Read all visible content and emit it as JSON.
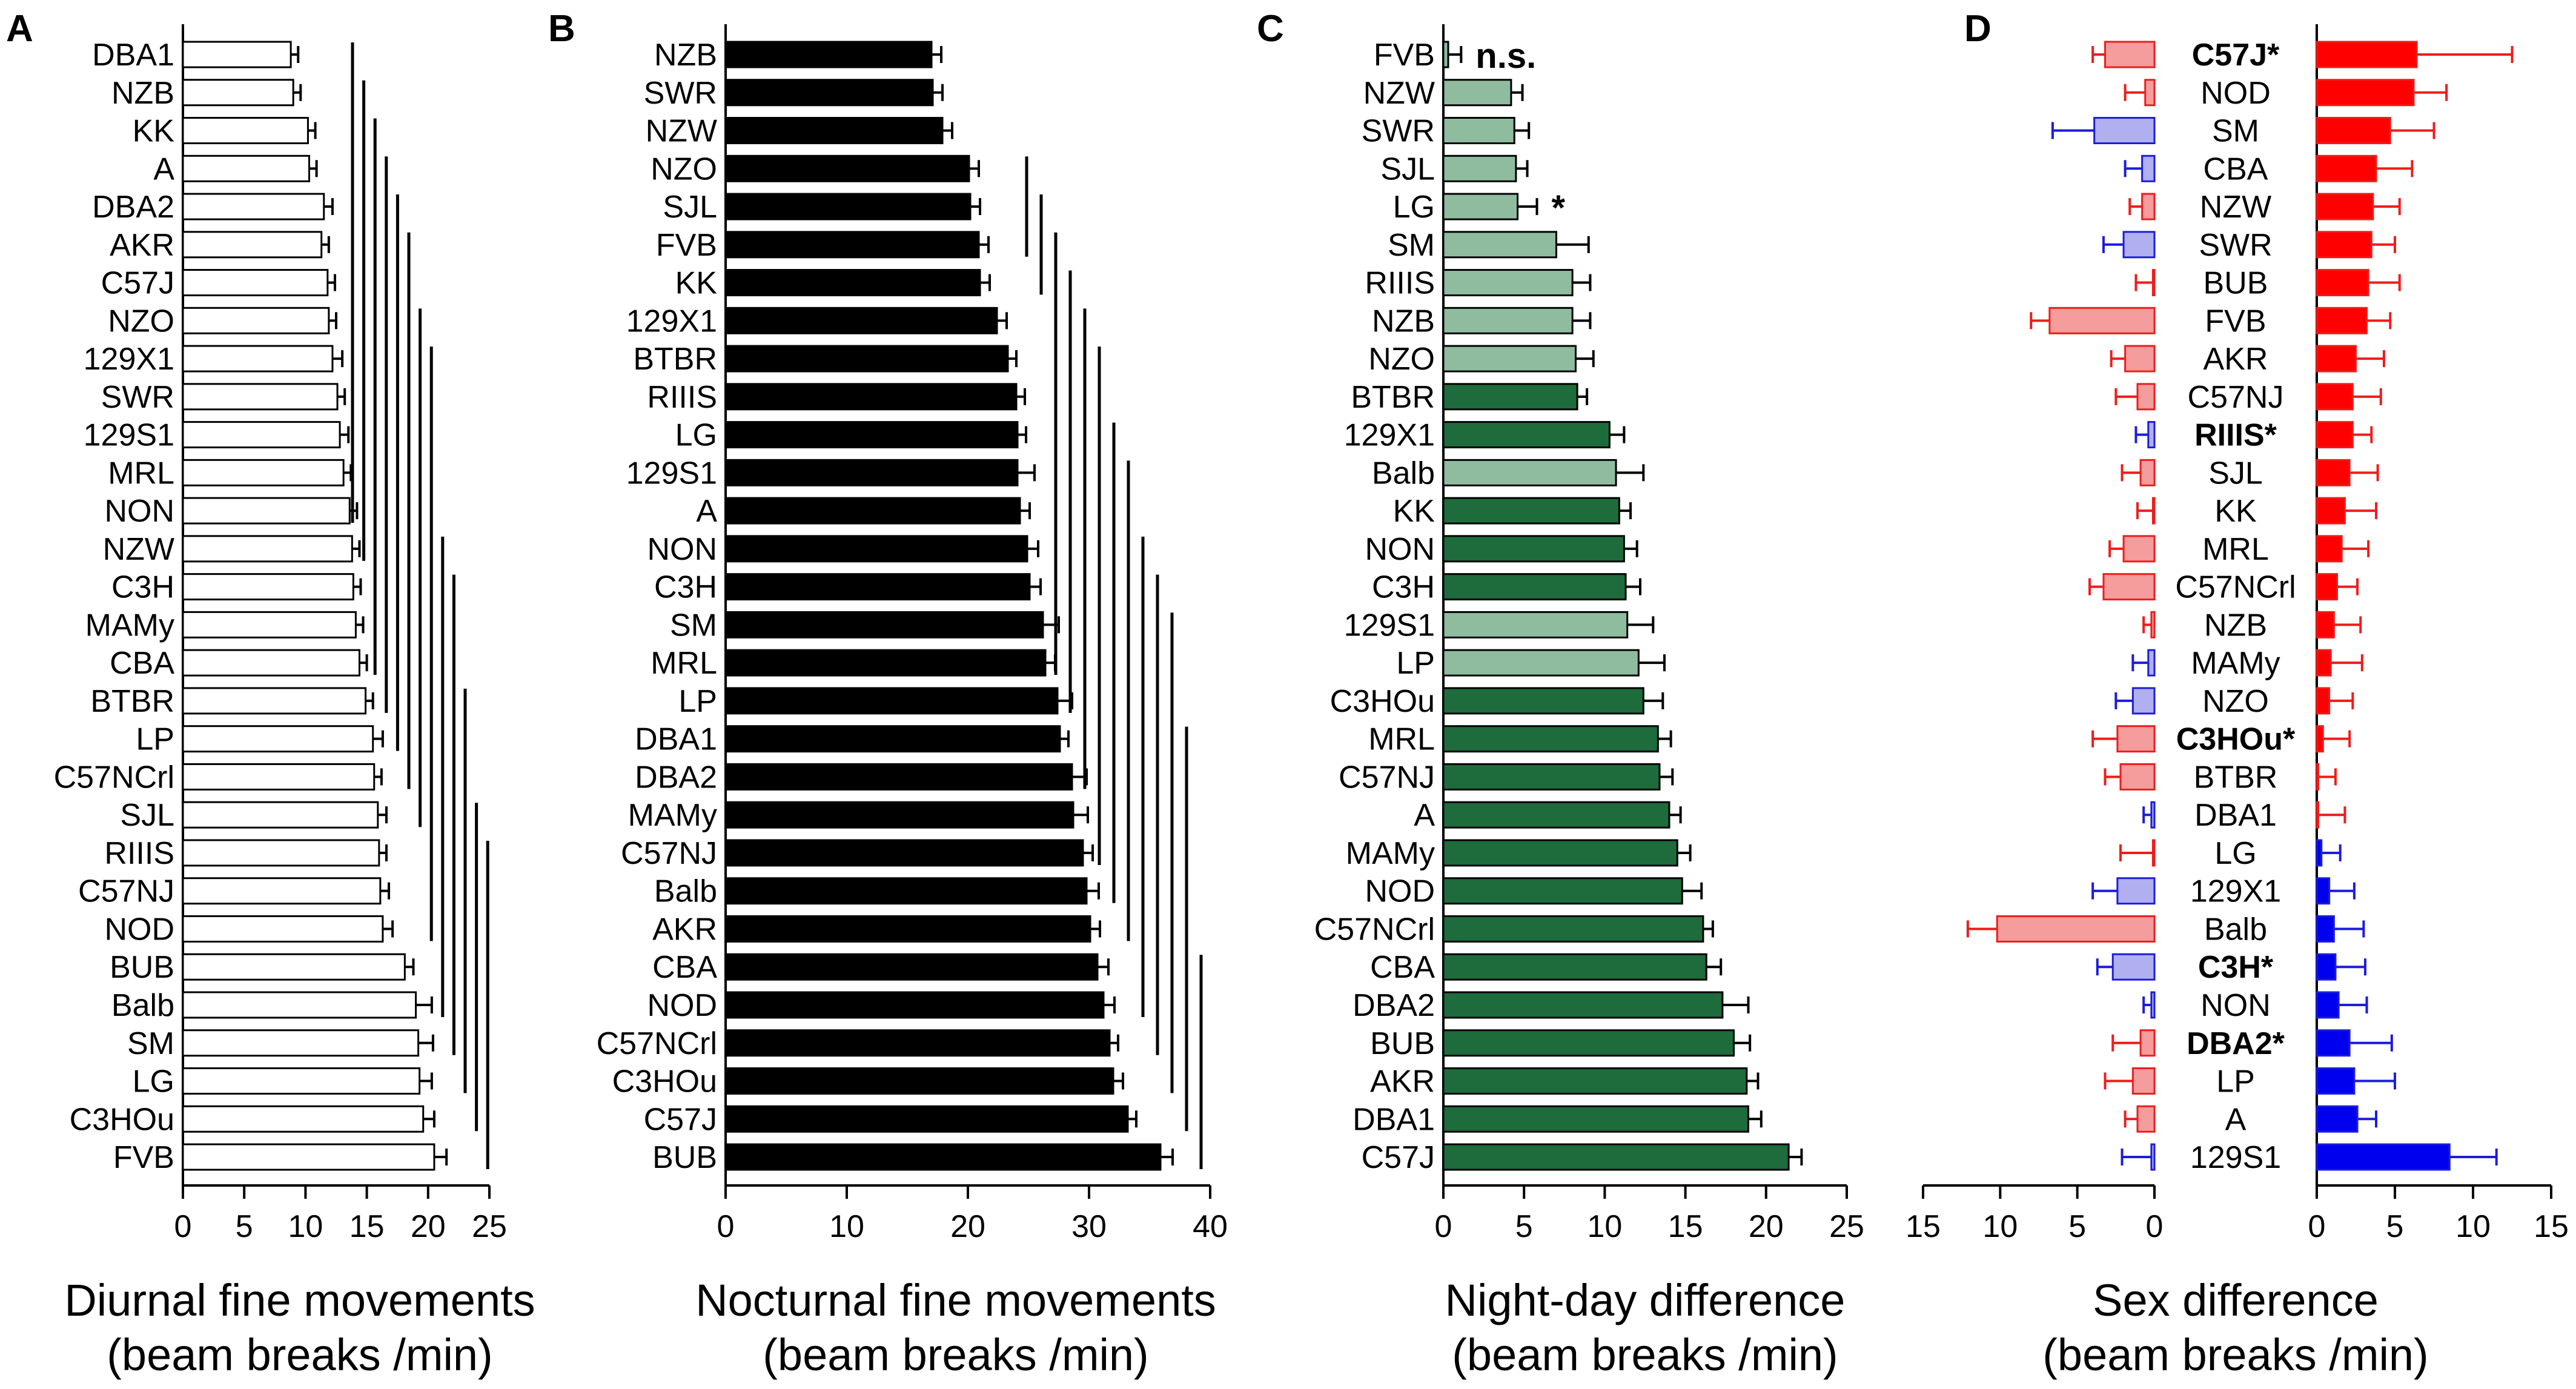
{
  "colors": {
    "panel_a_bar": "#ffffff",
    "panel_b_bar": "#000000",
    "panel_c_light": "#8fbc9f",
    "panel_c_dark": "#1e6b3c",
    "female_bar": "#f59c9c",
    "female_line": "#ee1c1c",
    "male_bar": "#ff0000",
    "low_bar": "#b0b0f0",
    "low_line": "#1c1cdc",
    "male_low_bar": "#0000ee"
  },
  "chart_data": [
    {
      "id": "A",
      "panel_label": "A",
      "type": "bar",
      "orientation": "horizontal",
      "xlabel_line1": "Diurnal fine movements",
      "xlabel_line2": "(beam breaks /min)",
      "xlim": [
        0,
        25
      ],
      "ticks": [
        "0",
        "5",
        "10",
        "15",
        "20",
        "25"
      ],
      "strains": [
        "DBA1",
        "NZB",
        "KK",
        "A",
        "DBA2",
        "AKR",
        "C57J",
        "NZO",
        "129X1",
        "SWR",
        "129S1",
        "MRL",
        "NON",
        "NZW",
        "C3H",
        "MAMy",
        "CBA",
        "BTBR",
        "LP",
        "C57NCrl",
        "SJL",
        "RIIIS",
        "C57NJ",
        "NOD",
        "BUB",
        "Balb",
        "SM",
        "LG",
        "C3HOu",
        "FVB"
      ],
      "values": [
        8.8,
        9.0,
        10.2,
        10.3,
        11.5,
        11.3,
        11.8,
        11.9,
        12.2,
        12.6,
        12.8,
        13.1,
        13.6,
        13.8,
        13.9,
        14.1,
        14.4,
        14.9,
        15.5,
        15.6,
        15.9,
        16.0,
        16.1,
        16.3,
        18.1,
        19.0,
        19.2,
        19.3,
        19.6,
        20.5
      ],
      "errors": [
        0.6,
        0.6,
        0.6,
        0.6,
        0.7,
        0.6,
        0.6,
        0.6,
        0.8,
        0.6,
        0.7,
        0.6,
        0.6,
        0.6,
        0.6,
        0.6,
        0.6,
        0.6,
        0.8,
        0.6,
        0.7,
        0.6,
        0.7,
        0.8,
        0.7,
        1.3,
        1.2,
        1.0,
        0.9,
        1.0
      ],
      "significance_lines": [
        {
          "from": "DBA1",
          "to": "NON"
        },
        {
          "from": "NZB",
          "to": "NZW"
        },
        {
          "from": "KK",
          "to": "CBA"
        },
        {
          "from": "A",
          "to": "BTBR"
        },
        {
          "from": "DBA2",
          "to": "LP"
        },
        {
          "from": "AKR",
          "to": "C57NCrl"
        },
        {
          "from": "NZO",
          "to": "SJL"
        },
        {
          "from": "129X1",
          "to": "NOD"
        },
        {
          "from": "NZW",
          "to": "Balb"
        },
        {
          "from": "C3H",
          "to": "SM"
        },
        {
          "from": "BTBR",
          "to": "LG"
        },
        {
          "from": "SJL",
          "to": "C3HOu"
        },
        {
          "from": "RIIIS",
          "to": "FVB"
        }
      ]
    },
    {
      "id": "B",
      "panel_label": "B",
      "type": "bar",
      "orientation": "horizontal",
      "xlabel_line1": "Nocturnal fine movements",
      "xlabel_line2": "(beam breaks /min)",
      "xlim": [
        0,
        40
      ],
      "ticks": [
        "0",
        "10",
        "20",
        "30",
        "40"
      ],
      "strains": [
        "NZB",
        "SWR",
        "NZW",
        "NZO",
        "SJL",
        "FVB",
        "KK",
        "129X1",
        "BTBR",
        "RIIIS",
        "LG",
        "129S1",
        "A",
        "NON",
        "C3H",
        "SM",
        "MRL",
        "LP",
        "DBA1",
        "DBA2",
        "MAMy",
        "C57NJ",
        "Balb",
        "AKR",
        "CBA",
        "NOD",
        "C57NCrl",
        "C3HOu",
        "C57J",
        "BUB"
      ],
      "values": [
        17.0,
        17.1,
        17.9,
        20.1,
        20.2,
        20.9,
        21.0,
        22.4,
        23.3,
        24.0,
        24.1,
        24.1,
        24.3,
        24.9,
        25.1,
        26.2,
        26.4,
        27.4,
        27.6,
        28.6,
        28.7,
        29.5,
        29.8,
        30.1,
        30.7,
        31.2,
        31.7,
        32.0,
        33.2,
        35.9
      ],
      "errors": [
        0.8,
        0.8,
        0.8,
        0.8,
        0.8,
        0.8,
        0.8,
        0.8,
        0.7,
        0.7,
        0.7,
        1.4,
        0.8,
        0.9,
        0.9,
        1.3,
        0.8,
        1.2,
        0.7,
        1.2,
        1.2,
        0.8,
        1.0,
        0.8,
        0.9,
        0.9,
        0.7,
        0.8,
        0.7,
        1.0
      ],
      "significance_lines": [
        {
          "from": "NZO",
          "to": "FVB"
        },
        {
          "from": "SJL",
          "to": "KK"
        },
        {
          "from": "FVB",
          "to": "MRL"
        },
        {
          "from": "KK",
          "to": "LP"
        },
        {
          "from": "129X1",
          "to": "DBA2"
        },
        {
          "from": "BTBR",
          "to": "C57NJ"
        },
        {
          "from": "LG",
          "to": "Balb"
        },
        {
          "from": "129S1",
          "to": "AKR"
        },
        {
          "from": "NON",
          "to": "NOD"
        },
        {
          "from": "C3H",
          "to": "C57NCrl"
        },
        {
          "from": "SM",
          "to": "C3HOu"
        },
        {
          "from": "DBA1",
          "to": "C57J"
        },
        {
          "from": "CBA",
          "to": "BUB"
        }
      ]
    },
    {
      "id": "C",
      "panel_label": "C",
      "type": "bar",
      "orientation": "horizontal",
      "xlabel_line1": "Night-day difference",
      "xlabel_line2": "(beam breaks /min)",
      "xlim": [
        0,
        25
      ],
      "ticks": [
        "0",
        "5",
        "10",
        "15",
        "20",
        "25"
      ],
      "strains": [
        "FVB",
        "NZW",
        "SWR",
        "SJL",
        "LG",
        "SM",
        "RIIIS",
        "NZB",
        "NZO",
        "BTBR",
        "129X1",
        "Balb",
        "KK",
        "NON",
        "C3H",
        "129S1",
        "LP",
        "C3HOu",
        "MRL",
        "C57NJ",
        "A",
        "MAMy",
        "NOD",
        "C57NCrl",
        "CBA",
        "DBA2",
        "BUB",
        "AKR",
        "DBA1",
        "C57J"
      ],
      "values": [
        0.3,
        4.2,
        4.4,
        4.5,
        4.6,
        7.0,
        8.0,
        8.0,
        8.2,
        8.3,
        10.3,
        10.7,
        10.9,
        11.2,
        11.3,
        11.4,
        12.1,
        12.4,
        13.3,
        13.4,
        14.0,
        14.5,
        14.8,
        16.1,
        16.3,
        17.3,
        18.0,
        18.8,
        18.9,
        21.4
      ],
      "errors": [
        0.8,
        0.7,
        0.9,
        0.7,
        1.2,
        2.0,
        1.1,
        1.1,
        1.1,
        0.6,
        0.9,
        1.7,
        0.7,
        0.8,
        0.9,
        1.6,
        1.6,
        1.2,
        0.8,
        0.8,
        0.7,
        0.8,
        1.2,
        0.6,
        0.9,
        1.6,
        1.0,
        0.7,
        0.8,
        0.8
      ],
      "shade": [
        "light",
        "light",
        "light",
        "light",
        "light",
        "light",
        "light",
        "light",
        "light",
        "dark",
        "dark",
        "light",
        "dark",
        "dark",
        "dark",
        "light",
        "light",
        "dark",
        "dark",
        "dark",
        "dark",
        "dark",
        "dark",
        "dark",
        "dark",
        "dark",
        "dark",
        "dark",
        "dark",
        "dark"
      ],
      "annotations": [
        {
          "strain": "FVB",
          "text": "n.s."
        },
        {
          "strain": "LG",
          "text": "*"
        }
      ]
    },
    {
      "id": "D",
      "panel_label": "D",
      "type": "bar",
      "orientation": "horizontal-back-to-back",
      "xlabel_line1": "Sex difference",
      "xlabel_line2": "(beam breaks /min)",
      "xlim_left": [
        15,
        0
      ],
      "xlim_right": [
        0,
        15
      ],
      "ticks_left": [
        "15",
        "10",
        "5",
        "0"
      ],
      "ticks_right": [
        "0",
        "5",
        "10",
        "15"
      ],
      "strains": [
        "C57J*",
        "NOD",
        "SM",
        "CBA",
        "NZW",
        "SWR",
        "BUB",
        "FVB",
        "AKR",
        "C57NJ",
        "RIIIS*",
        "SJL",
        "KK",
        "MRL",
        "C57NCrl",
        "NZB",
        "MAMy",
        "NZO",
        "C3HOu*",
        "BTBR",
        "DBA1",
        "LG",
        "129X1",
        "Balb",
        "C3H*",
        "NON",
        "DBA2*",
        "LP",
        "A",
        "129S1"
      ],
      "bold": [
        true,
        false,
        false,
        false,
        false,
        false,
        false,
        false,
        false,
        false,
        true,
        false,
        false,
        false,
        false,
        false,
        false,
        false,
        true,
        false,
        false,
        false,
        false,
        false,
        true,
        false,
        true,
        false,
        false,
        false
      ],
      "left_values": [
        3.2,
        0.6,
        3.9,
        0.8,
        0.8,
        2.0,
        0.1,
        6.8,
        1.9,
        1.1,
        0.4,
        0.9,
        0.1,
        2.0,
        3.3,
        0.2,
        0.4,
        1.4,
        2.4,
        2.2,
        0.2,
        0.1,
        2.4,
        10.2,
        2.7,
        0.2,
        0.9,
        1.4,
        1.1,
        0.2
      ],
      "left_errors": [
        0.8,
        1.3,
        2.7,
        1.1,
        0.8,
        1.3,
        1.1,
        1.2,
        0.9,
        1.4,
        0.8,
        1.2,
        1.0,
        0.9,
        0.9,
        0.5,
        1.0,
        1.1,
        1.6,
        1.0,
        0.5,
        2.1,
        1.6,
        1.9,
        1.0,
        0.5,
        1.8,
        1.8,
        0.8,
        1.9
      ],
      "left_colors": [
        "red",
        "red",
        "blue",
        "blue",
        "red",
        "blue",
        "red",
        "red",
        "red",
        "red",
        "blue",
        "red",
        "red",
        "red",
        "red",
        "red",
        "blue",
        "blue",
        "red",
        "red",
        "blue",
        "red",
        "blue",
        "red",
        "blue",
        "blue",
        "red",
        "red",
        "red",
        "blue"
      ],
      "right_values": [
        6.4,
        6.2,
        4.7,
        3.8,
        3.6,
        3.5,
        3.3,
        3.2,
        2.5,
        2.3,
        2.3,
        2.1,
        1.8,
        1.6,
        1.3,
        1.1,
        0.9,
        0.8,
        0.4,
        0.1,
        0.1,
        0.3,
        0.8,
        1.1,
        1.2,
        1.4,
        2.1,
        2.4,
        2.6,
        8.5
      ],
      "right_errors": [
        6.1,
        2.1,
        2.8,
        2.3,
        1.7,
        1.5,
        2.0,
        1.5,
        1.8,
        1.8,
        1.2,
        1.8,
        2.0,
        1.7,
        1.3,
        1.7,
        2.0,
        1.5,
        1.7,
        1.1,
        1.7,
        1.2,
        1.6,
        1.9,
        1.9,
        1.8,
        2.7,
        2.6,
        1.2,
        3.0
      ],
      "right_colors": [
        "red",
        "red",
        "red",
        "red",
        "red",
        "red",
        "red",
        "red",
        "red",
        "red",
        "red",
        "red",
        "red",
        "red",
        "red",
        "red",
        "red",
        "red",
        "red",
        "red",
        "red",
        "blue",
        "blue",
        "blue",
        "blue",
        "blue",
        "blue",
        "blue",
        "blue",
        "blue"
      ]
    }
  ]
}
